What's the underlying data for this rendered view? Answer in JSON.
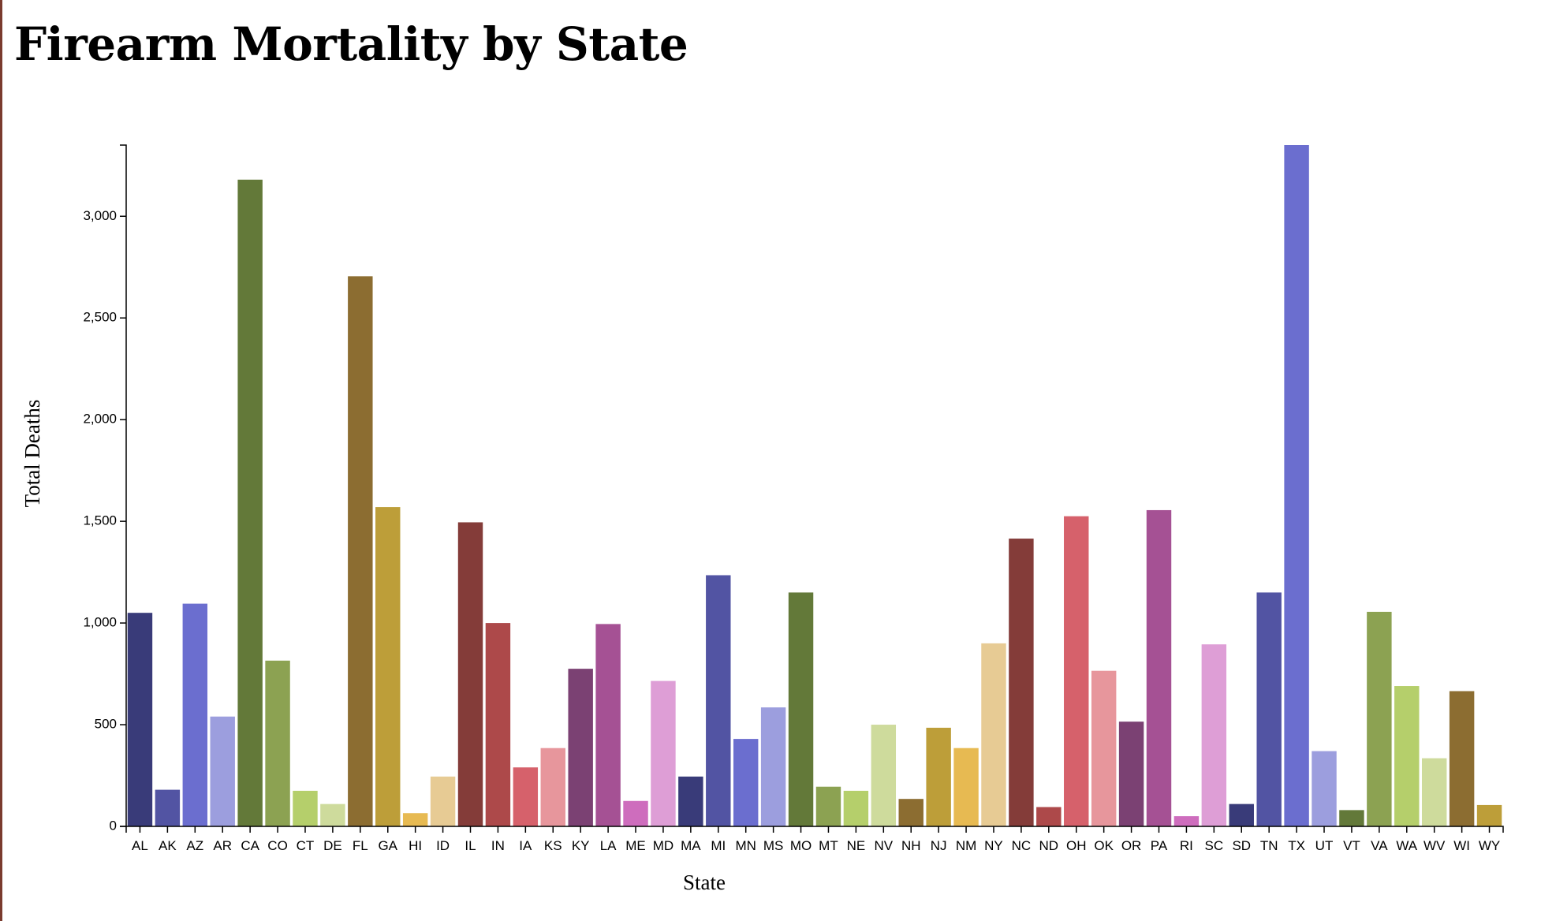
{
  "page": {
    "title": "Firearm Mortality by State"
  },
  "chart_data": {
    "type": "bar",
    "title": "Firearm Mortality by State",
    "xlabel": "State",
    "ylabel": "Total Deaths",
    "ylim": [
      0,
      3350
    ],
    "yticks": [
      0,
      500,
      1000,
      1500,
      2000,
      2500,
      3000
    ],
    "ytick_labels": [
      "0",
      "500",
      "1,000",
      "1,500",
      "2,000",
      "2,500",
      "3,000"
    ],
    "grid": false,
    "categories": [
      "AL",
      "AK",
      "AZ",
      "AR",
      "CA",
      "CO",
      "CT",
      "DE",
      "FL",
      "GA",
      "HI",
      "ID",
      "IL",
      "IN",
      "IA",
      "KS",
      "KY",
      "LA",
      "ME",
      "MD",
      "MA",
      "MI",
      "MN",
      "MS",
      "MO",
      "MT",
      "NE",
      "NV",
      "NH",
      "NJ",
      "NM",
      "NY",
      "NC",
      "ND",
      "OH",
      "OK",
      "OR",
      "PA",
      "RI",
      "SC",
      "SD",
      "TN",
      "TX",
      "UT",
      "VT",
      "VA",
      "WA",
      "WV",
      "WI",
      "WY"
    ],
    "values": [
      1050,
      180,
      1095,
      540,
      3180,
      815,
      175,
      110,
      2705,
      1570,
      65,
      245,
      1495,
      1000,
      290,
      385,
      775,
      995,
      125,
      715,
      245,
      1235,
      430,
      585,
      1150,
      195,
      175,
      500,
      135,
      485,
      385,
      900,
      1415,
      95,
      1525,
      765,
      515,
      1555,
      50,
      895,
      110,
      1150,
      3350,
      370,
      80,
      1055,
      690,
      335,
      665,
      105
    ],
    "colors": [
      "#393b79",
      "#5254a3",
      "#6b6ecf",
      "#9c9ede",
      "#637939",
      "#8ca252",
      "#b5cf6b",
      "#cedb9c",
      "#8c6d31",
      "#bd9e39",
      "#e7ba52",
      "#e7cb94",
      "#843c39",
      "#ad494a",
      "#d6616b",
      "#e7969c",
      "#7b4173",
      "#a55194",
      "#ce6dbd",
      "#de9ed6"
    ]
  }
}
